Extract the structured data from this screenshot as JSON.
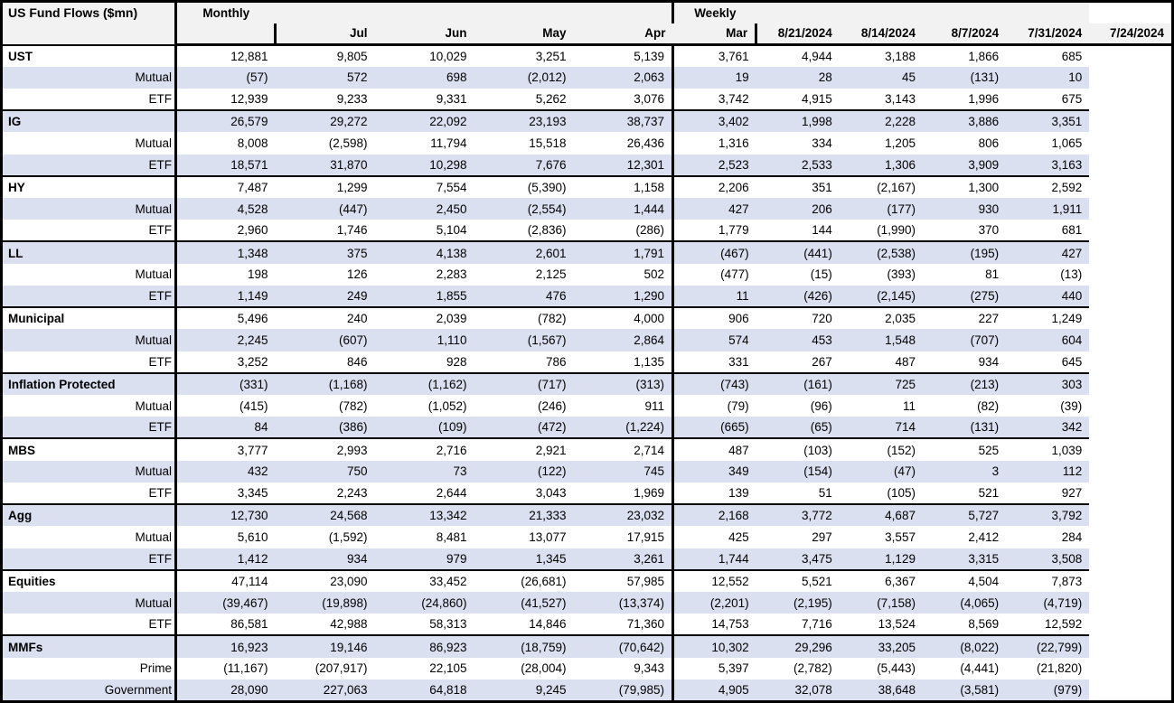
{
  "title": "US Fund Flows ($mn)",
  "colors": {
    "stripe": "#dbe0f0",
    "header_bg": "#f2f2f2",
    "border": "#000000",
    "text": "#000000"
  },
  "header": {
    "monthly_label": "Monthly",
    "weekly_label": "Weekly",
    "monthly_columns": [
      "Jul",
      "Jun",
      "May",
      "Apr",
      "Mar"
    ],
    "weekly_columns": [
      "8/21/2024",
      "8/14/2024",
      "8/7/2024",
      "7/31/2024",
      "7/24/2024"
    ]
  },
  "groups": [
    {
      "rows": [
        {
          "label": "UST",
          "category": true,
          "monthly": [
            "12,881",
            "9,805",
            "10,029",
            "3,251",
            "5,139"
          ],
          "weekly": [
            "3,761",
            "4,944",
            "3,188",
            "1,866",
            "685"
          ]
        },
        {
          "label": "Mutual",
          "category": false,
          "monthly": [
            "(57)",
            "572",
            "698",
            "(2,012)",
            "2,063"
          ],
          "weekly": [
            "19",
            "28",
            "45",
            "(131)",
            "10"
          ]
        },
        {
          "label": "ETF",
          "category": false,
          "monthly": [
            "12,939",
            "9,233",
            "9,331",
            "5,262",
            "3,076"
          ],
          "weekly": [
            "3,742",
            "4,915",
            "3,143",
            "1,996",
            "675"
          ]
        }
      ]
    },
    {
      "rows": [
        {
          "label": "IG",
          "category": true,
          "monthly": [
            "26,579",
            "29,272",
            "22,092",
            "23,193",
            "38,737"
          ],
          "weekly": [
            "3,402",
            "1,998",
            "2,228",
            "3,886",
            "3,351"
          ]
        },
        {
          "label": "Mutual",
          "category": false,
          "monthly": [
            "8,008",
            "(2,598)",
            "11,794",
            "15,518",
            "26,436"
          ],
          "weekly": [
            "1,316",
            "334",
            "1,205",
            "806",
            "1,065"
          ]
        },
        {
          "label": "ETF",
          "category": false,
          "monthly": [
            "18,571",
            "31,870",
            "10,298",
            "7,676",
            "12,301"
          ],
          "weekly": [
            "2,523",
            "2,533",
            "1,306",
            "3,909",
            "3,163"
          ]
        }
      ]
    },
    {
      "rows": [
        {
          "label": "HY",
          "category": true,
          "monthly": [
            "7,487",
            "1,299",
            "7,554",
            "(5,390)",
            "1,158"
          ],
          "weekly": [
            "2,206",
            "351",
            "(2,167)",
            "1,300",
            "2,592"
          ]
        },
        {
          "label": "Mutual",
          "category": false,
          "monthly": [
            "4,528",
            "(447)",
            "2,450",
            "(2,554)",
            "1,444"
          ],
          "weekly": [
            "427",
            "206",
            "(177)",
            "930",
            "1,911"
          ]
        },
        {
          "label": "ETF",
          "category": false,
          "monthly": [
            "2,960",
            "1,746",
            "5,104",
            "(2,836)",
            "(286)"
          ],
          "weekly": [
            "1,779",
            "144",
            "(1,990)",
            "370",
            "681"
          ]
        }
      ]
    },
    {
      "rows": [
        {
          "label": "LL",
          "category": true,
          "monthly": [
            "1,348",
            "375",
            "4,138",
            "2,601",
            "1,791"
          ],
          "weekly": [
            "(467)",
            "(441)",
            "(2,538)",
            "(195)",
            "427"
          ]
        },
        {
          "label": "Mutual",
          "category": false,
          "monthly": [
            "198",
            "126",
            "2,283",
            "2,125",
            "502"
          ],
          "weekly": [
            "(477)",
            "(15)",
            "(393)",
            "81",
            "(13)"
          ]
        },
        {
          "label": "ETF",
          "category": false,
          "monthly": [
            "1,149",
            "249",
            "1,855",
            "476",
            "1,290"
          ],
          "weekly": [
            "11",
            "(426)",
            "(2,145)",
            "(275)",
            "440"
          ]
        }
      ]
    },
    {
      "rows": [
        {
          "label": "Municipal",
          "category": true,
          "monthly": [
            "5,496",
            "240",
            "2,039",
            "(782)",
            "4,000"
          ],
          "weekly": [
            "906",
            "720",
            "2,035",
            "227",
            "1,249"
          ]
        },
        {
          "label": "Mutual",
          "category": false,
          "monthly": [
            "2,245",
            "(607)",
            "1,110",
            "(1,567)",
            "2,864"
          ],
          "weekly": [
            "574",
            "453",
            "1,548",
            "(707)",
            "604"
          ]
        },
        {
          "label": "ETF",
          "category": false,
          "monthly": [
            "3,252",
            "846",
            "928",
            "786",
            "1,135"
          ],
          "weekly": [
            "331",
            "267",
            "487",
            "934",
            "645"
          ]
        }
      ]
    },
    {
      "rows": [
        {
          "label": "Inflation Protected",
          "category": true,
          "monthly": [
            "(331)",
            "(1,168)",
            "(1,162)",
            "(717)",
            "(313)"
          ],
          "weekly": [
            "(743)",
            "(161)",
            "725",
            "(213)",
            "303"
          ]
        },
        {
          "label": "Mutual",
          "category": false,
          "monthly": [
            "(415)",
            "(782)",
            "(1,052)",
            "(246)",
            "911"
          ],
          "weekly": [
            "(79)",
            "(96)",
            "11",
            "(82)",
            "(39)"
          ]
        },
        {
          "label": "ETF",
          "category": false,
          "monthly": [
            "84",
            "(386)",
            "(109)",
            "(472)",
            "(1,224)"
          ],
          "weekly": [
            "(665)",
            "(65)",
            "714",
            "(131)",
            "342"
          ]
        }
      ]
    },
    {
      "rows": [
        {
          "label": "MBS",
          "category": true,
          "monthly": [
            "3,777",
            "2,993",
            "2,716",
            "2,921",
            "2,714"
          ],
          "weekly": [
            "487",
            "(103)",
            "(152)",
            "525",
            "1,039"
          ]
        },
        {
          "label": "Mutual",
          "category": false,
          "monthly": [
            "432",
            "750",
            "73",
            "(122)",
            "745"
          ],
          "weekly": [
            "349",
            "(154)",
            "(47)",
            "3",
            "112"
          ]
        },
        {
          "label": "ETF",
          "category": false,
          "monthly": [
            "3,345",
            "2,243",
            "2,644",
            "3,043",
            "1,969"
          ],
          "weekly": [
            "139",
            "51",
            "(105)",
            "521",
            "927"
          ]
        }
      ]
    },
    {
      "rows": [
        {
          "label": "Agg",
          "category": true,
          "monthly": [
            "12,730",
            "24,568",
            "13,342",
            "21,333",
            "23,032"
          ],
          "weekly": [
            "2,168",
            "3,772",
            "4,687",
            "5,727",
            "3,792"
          ]
        },
        {
          "label": "Mutual",
          "category": false,
          "monthly": [
            "5,610",
            "(1,592)",
            "8,481",
            "13,077",
            "17,915"
          ],
          "weekly": [
            "425",
            "297",
            "3,557",
            "2,412",
            "284"
          ]
        },
        {
          "label": "ETF",
          "category": false,
          "monthly": [
            "1,412",
            "934",
            "979",
            "1,345",
            "3,261"
          ],
          "weekly": [
            "1,744",
            "3,475",
            "1,129",
            "3,315",
            "3,508"
          ]
        }
      ]
    },
    {
      "rows": [
        {
          "label": "Equities",
          "category": true,
          "monthly": [
            "47,114",
            "23,090",
            "33,452",
            "(26,681)",
            "57,985"
          ],
          "weekly": [
            "12,552",
            "5,521",
            "6,367",
            "4,504",
            "7,873"
          ]
        },
        {
          "label": "Mutual",
          "category": false,
          "monthly": [
            "(39,467)",
            "(19,898)",
            "(24,860)",
            "(41,527)",
            "(13,374)"
          ],
          "weekly": [
            "(2,201)",
            "(2,195)",
            "(7,158)",
            "(4,065)",
            "(4,719)"
          ]
        },
        {
          "label": "ETF",
          "category": false,
          "monthly": [
            "86,581",
            "42,988",
            "58,313",
            "14,846",
            "71,360"
          ],
          "weekly": [
            "14,753",
            "7,716",
            "13,524",
            "8,569",
            "12,592"
          ]
        }
      ]
    },
    {
      "rows": [
        {
          "label": "MMFs",
          "category": true,
          "monthly": [
            "16,923",
            "19,146",
            "86,923",
            "(18,759)",
            "(70,642)"
          ],
          "weekly": [
            "10,302",
            "29,296",
            "33,205",
            "(8,022)",
            "(22,799)"
          ]
        },
        {
          "label": "Prime",
          "category": false,
          "monthly": [
            "(11,167)",
            "(207,917)",
            "22,105",
            "(28,004)",
            "9,343"
          ],
          "weekly": [
            "5,397",
            "(2,782)",
            "(5,443)",
            "(4,441)",
            "(21,820)"
          ]
        },
        {
          "label": "Government",
          "category": false,
          "monthly": [
            "28,090",
            "227,063",
            "64,818",
            "9,245",
            "(79,985)"
          ],
          "weekly": [
            "4,905",
            "32,078",
            "38,648",
            "(3,581)",
            "(979)"
          ]
        }
      ]
    }
  ]
}
